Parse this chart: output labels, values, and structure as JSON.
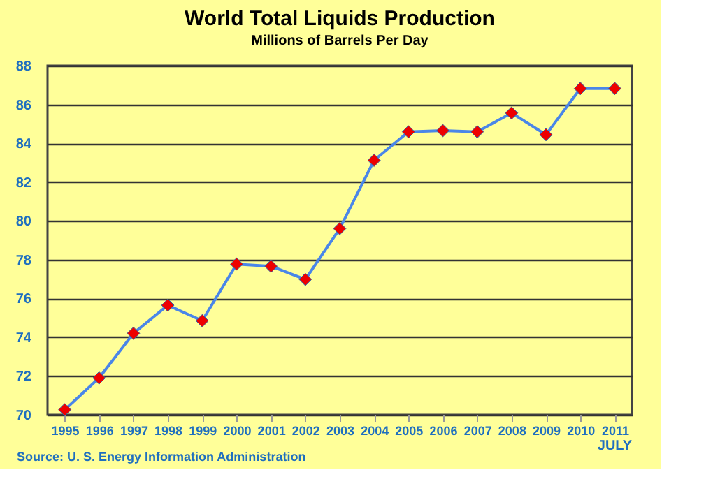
{
  "chart_data": {
    "type": "line",
    "title": "World Total Liquids Production",
    "subtitle": "Millions of Barrels Per Day",
    "categories": [
      "1995",
      "1996",
      "1997",
      "1998",
      "1999",
      "2000",
      "2001",
      "2002",
      "2003",
      "2004",
      "2005",
      "2006",
      "2007",
      "2008",
      "2009",
      "2010",
      "2011"
    ],
    "series": [
      {
        "color": "#4a86e8",
        "values": [
          70.26,
          71.9,
          74.2,
          75.65,
          74.85,
          77.77,
          77.66,
          76.98,
          79.6,
          83.12,
          84.59,
          84.65,
          84.59,
          85.56,
          84.44,
          86.82,
          86.82
        ]
      }
    ],
    "marker": "diamond",
    "line_style": "solid",
    "ylim": [
      70,
      88
    ],
    "yticks": [
      70,
      72,
      74,
      76,
      78,
      80,
      82,
      84,
      86,
      88
    ],
    "grid": "y",
    "annotations": [
      "Source: U. S. Energy Information Administration",
      "JULY"
    ]
  }
}
